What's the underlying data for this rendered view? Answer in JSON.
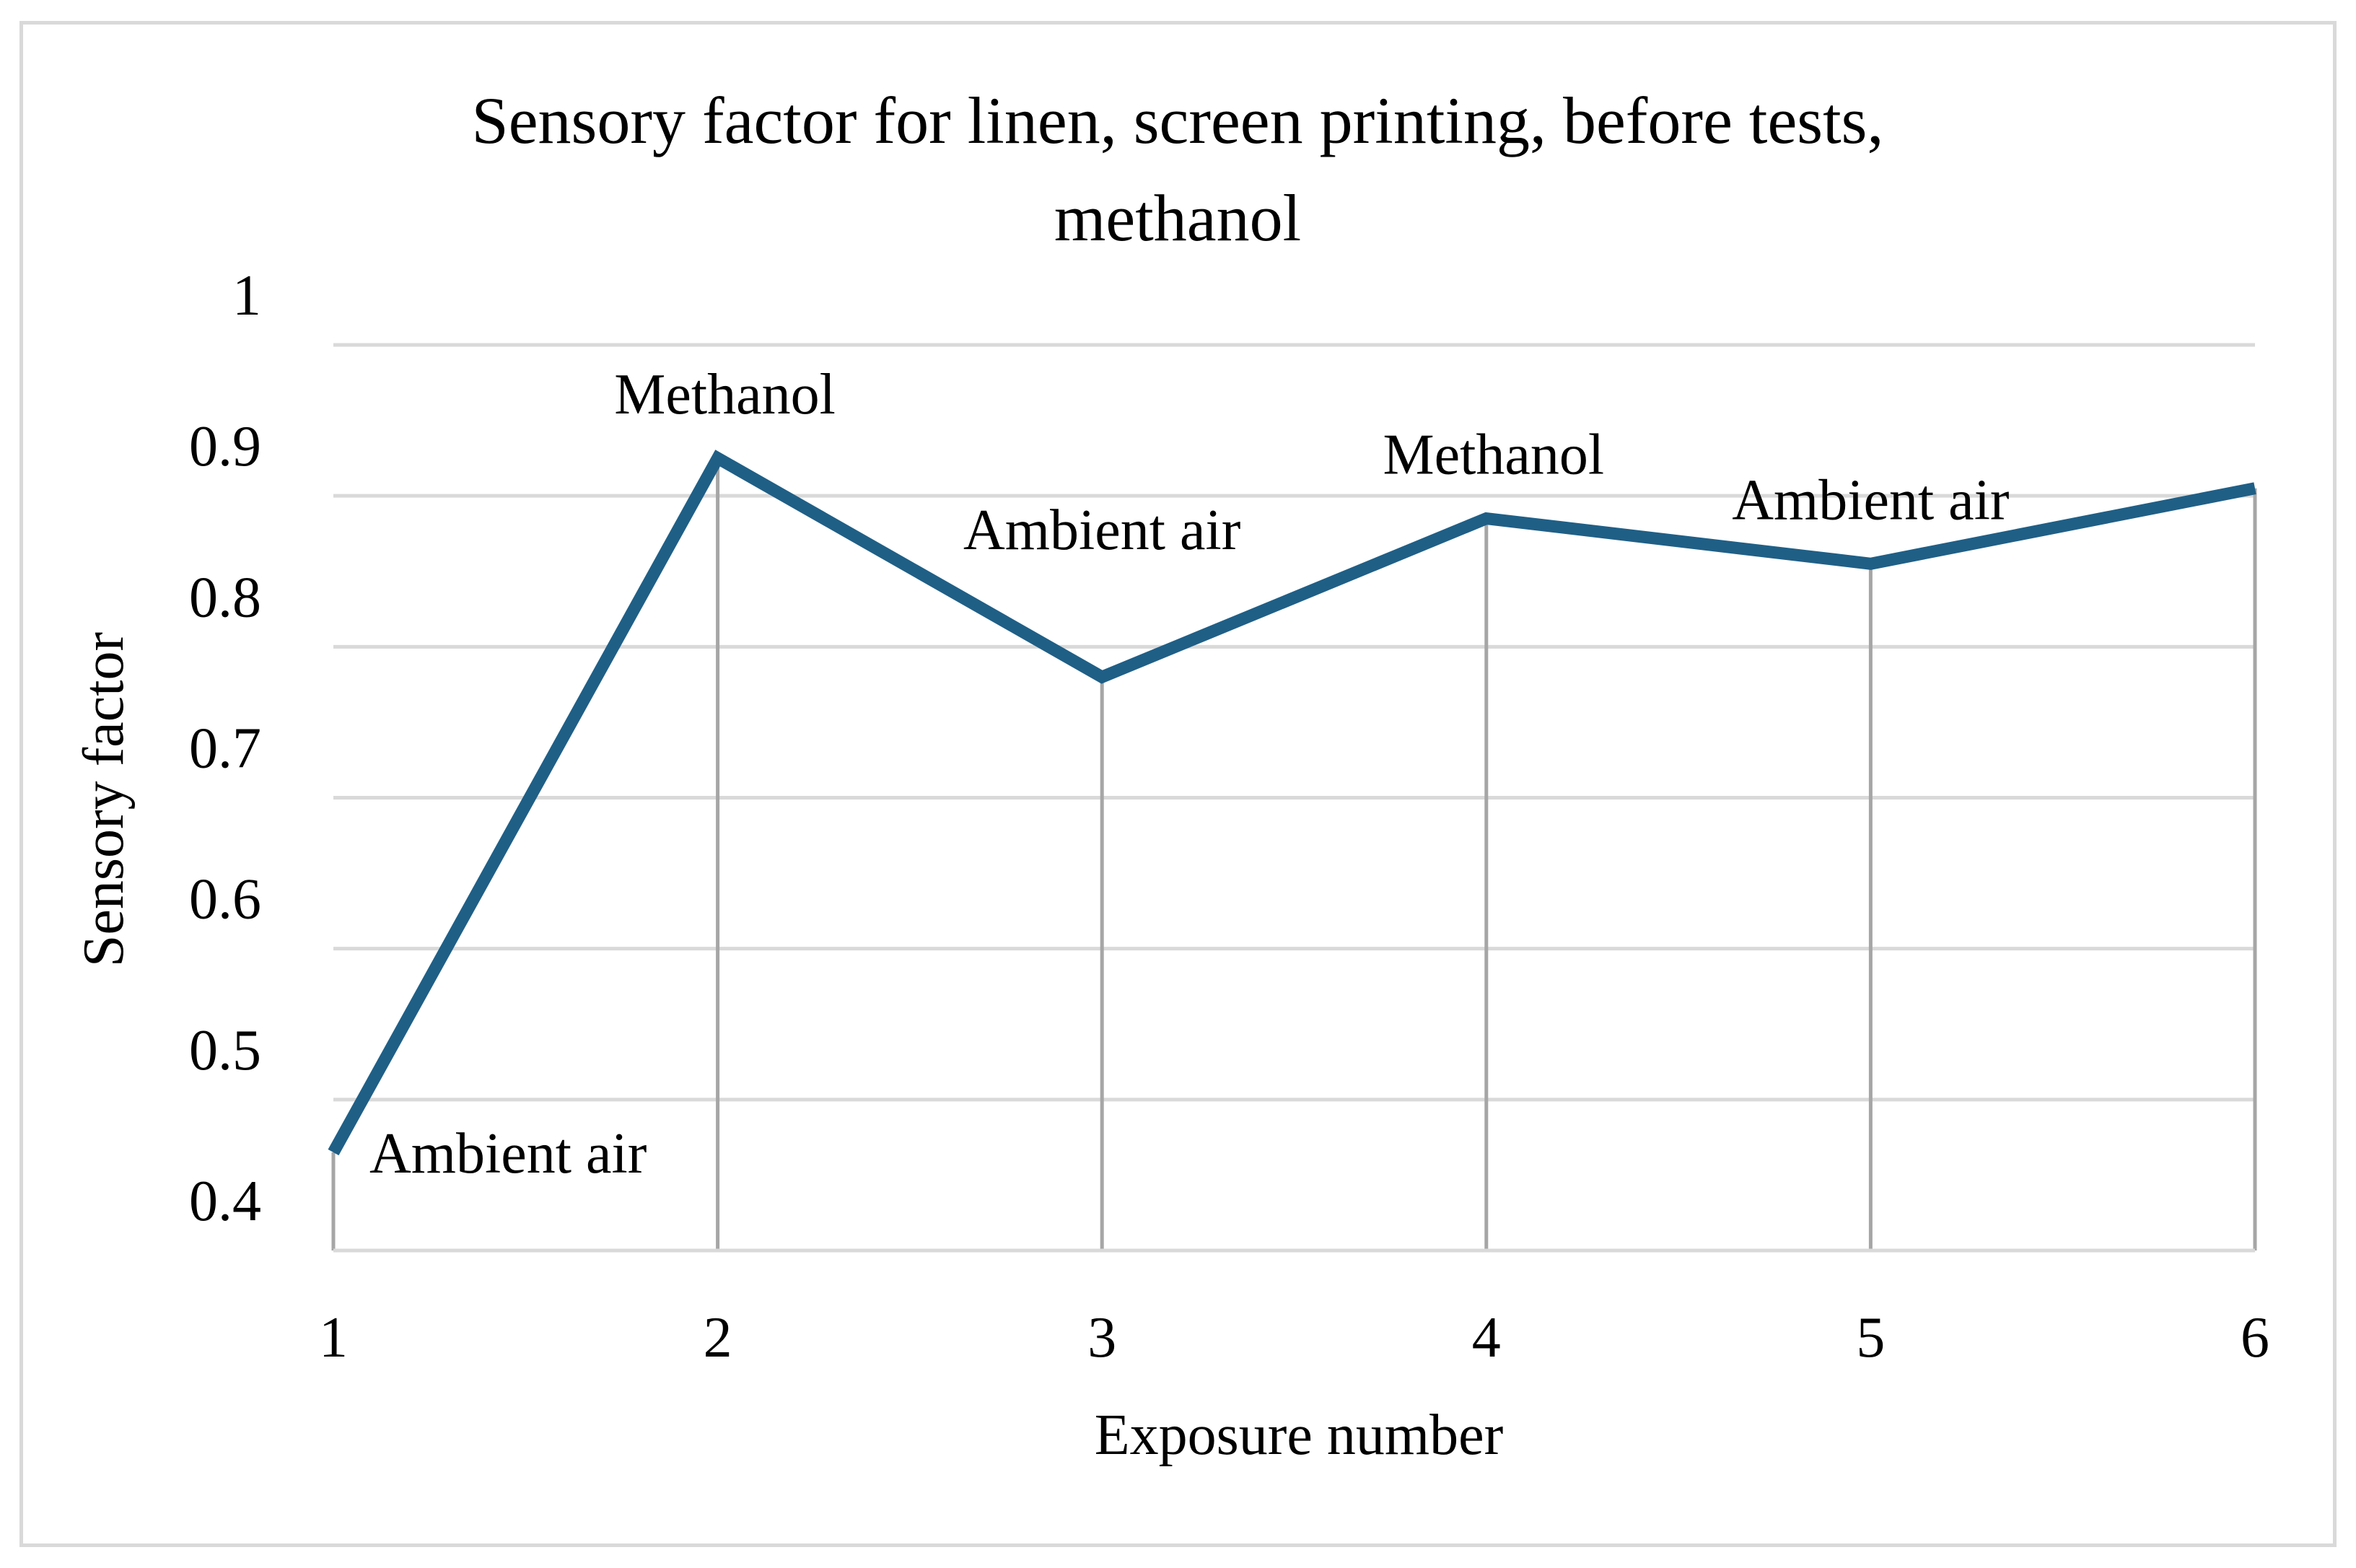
{
  "chart_data": {
    "type": "line",
    "title_lines": [
      "Sensory factor for linen, screen printing, before tests,",
      "methanol"
    ],
    "xlabel": "Exposure number",
    "ylabel": "Sensory factor",
    "x": [
      1,
      2,
      3,
      4,
      5,
      6
    ],
    "x_tick_labels": [
      "1",
      "2",
      "3",
      "4",
      "5",
      "6"
    ],
    "y_tick_labels": [
      "0.4",
      "0.5",
      "0.6",
      "0.7",
      "0.8",
      "0.9",
      "1"
    ],
    "ylim": [
      0.4,
      1.0
    ],
    "series": [
      {
        "values": [
          0.465,
          0.925,
          0.78,
          0.885,
          0.855,
          0.905
        ],
        "color": "#1f5f86"
      }
    ],
    "annotations": [
      {
        "x": 1,
        "text": "Ambient air"
      },
      {
        "x": 2,
        "text": "Methanol"
      },
      {
        "x": 3,
        "text": "Ambient air"
      },
      {
        "x": 4,
        "text": "Methanol"
      },
      {
        "x": 5,
        "text": "Ambient air"
      }
    ],
    "grid": true,
    "drop_lines": true,
    "legend": "none"
  }
}
